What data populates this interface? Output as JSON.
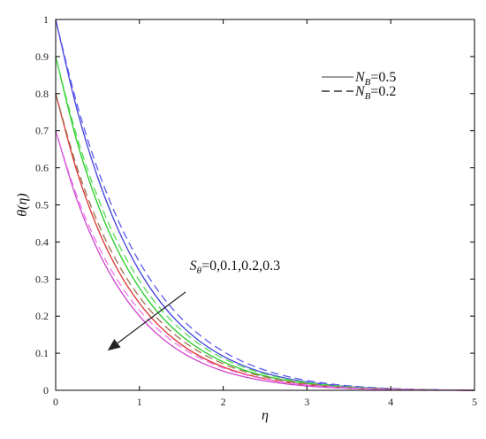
{
  "chart_data": {
    "type": "line",
    "xlabel": "η",
    "ylabel": "θ(η)",
    "xlim": [
      0,
      5
    ],
    "ylim": [
      0,
      1
    ],
    "xticks": [
      0,
      1,
      2,
      3,
      4,
      5
    ],
    "yticks": [
      0,
      0.1,
      0.2,
      0.3,
      0.4,
      0.5,
      0.6,
      0.7,
      0.8,
      0.9,
      1
    ],
    "grid": false,
    "x": [
      0,
      0.25,
      0.5,
      0.75,
      1,
      1.25,
      1.5,
      1.75,
      2,
      2.25,
      2.5,
      2.75,
      3,
      3.25,
      3.5,
      3.75,
      4,
      4.25,
      4.5,
      4.75,
      5
    ],
    "legend": {
      "placement": "top-right",
      "entries": [
        {
          "label": "N_B=0.5",
          "main": "N",
          "sub": "B",
          "value": "=0.5",
          "style": "solid",
          "color": "#666666"
        },
        {
          "label": "N_B=0.2",
          "main": "N",
          "sub": "B",
          "value": "=0.2",
          "style": "dashed",
          "color": "#333333"
        }
      ]
    },
    "annotation": {
      "label": "S_θ=0,0.1,0.2,0.3",
      "main": "S",
      "sub": "θ",
      "value": "=0,0.1,0.2,0.3",
      "arrow_from": [
        1.55,
        0.265
      ],
      "arrow_to": [
        0.62,
        0.107
      ],
      "text_at": [
        1.6,
        0.325
      ]
    },
    "series": [
      {
        "S": "0",
        "nb": "0.5",
        "style": "solid",
        "color": "#4040dd",
        "values": [
          1.0,
          0.7608,
          0.5752,
          0.4318,
          0.3219,
          0.2382,
          0.1749,
          0.1274,
          0.092,
          0.0658,
          0.0465,
          0.0325,
          0.0224,
          0.0152,
          0.0101,
          0.0066,
          0.0041,
          0.0024,
          0.0013,
          0.0005,
          0.0
        ]
      },
      {
        "S": "0",
        "nb": "0.2",
        "style": "dashed",
        "color": "#5a5aee",
        "values": [
          1.0,
          0.7756,
          0.5973,
          0.4565,
          0.3462,
          0.2604,
          0.1942,
          0.1435,
          0.105,
          0.0759,
          0.0542,
          0.0382,
          0.0266,
          0.0182,
          0.0122,
          0.008,
          0.0051,
          0.003,
          0.0016,
          0.0007,
          0.0
        ]
      },
      {
        "S": "0.1",
        "nb": "0.5",
        "style": "solid",
        "color": "#22cc22",
        "values": [
          0.9,
          0.674,
          0.5027,
          0.3732,
          0.2757,
          0.2025,
          0.1477,
          0.107,
          0.0768,
          0.0546,
          0.0385,
          0.0268,
          0.0184,
          0.0124,
          0.0082,
          0.0053,
          0.0033,
          0.0019,
          0.001,
          0.0004,
          0.0
        ]
      },
      {
        "S": "0.1",
        "nb": "0.2",
        "style": "dashed",
        "color": "#55dd55",
        "values": [
          0.9,
          0.6871,
          0.5219,
          0.3942,
          0.2957,
          0.2203,
          0.1627,
          0.1191,
          0.0862,
          0.0617,
          0.0437,
          0.0305,
          0.021,
          0.0142,
          0.0094,
          0.0061,
          0.0038,
          0.0022,
          0.0012,
          0.0005,
          0.0
        ]
      },
      {
        "S": "0.2",
        "nb": "0.5",
        "style": "solid",
        "color": "#dd3030",
        "values": [
          0.8,
          0.5931,
          0.4374,
          0.3212,
          0.2348,
          0.1708,
          0.1234,
          0.0886,
          0.0631,
          0.0445,
          0.0311,
          0.0215,
          0.0147,
          0.0099,
          0.0065,
          0.0042,
          0.0026,
          0.0015,
          0.0008,
          0.0003,
          0.0
        ]
      },
      {
        "S": "0.2",
        "nb": "0.2",
        "style": "dashed",
        "color": "#a07050",
        "values": [
          0.8,
          0.6046,
          0.454,
          0.3392,
          0.2519,
          0.1859,
          0.1362,
          0.0991,
          0.0714,
          0.0509,
          0.036,
          0.0251,
          0.0173,
          0.0117,
          0.0077,
          0.005,
          0.0031,
          0.0018,
          0.001,
          0.0004,
          0.0
        ]
      },
      {
        "S": "0.3",
        "nb": "0.5",
        "style": "solid",
        "color": "#cc44cc",
        "values": [
          0.7,
          0.5162,
          0.3789,
          0.2765,
          0.2004,
          0.1443,
          0.1033,
          0.0736,
          0.052,
          0.0364,
          0.0253,
          0.0174,
          0.0118,
          0.0079,
          0.0052,
          0.0034,
          0.0021,
          0.0012,
          0.0006,
          0.0003,
          0.0
        ]
      },
      {
        "S": "0.3",
        "nb": "0.2",
        "style": "dashed",
        "color": "#ee77ee",
        "values": [
          0.7,
          0.5262,
          0.3934,
          0.2926,
          0.2163,
          0.1588,
          0.1158,
          0.0838,
          0.0601,
          0.0427,
          0.03,
          0.0209,
          0.0143,
          0.0097,
          0.0064,
          0.0041,
          0.0026,
          0.0015,
          0.0008,
          0.0003,
          0.0
        ]
      }
    ]
  }
}
